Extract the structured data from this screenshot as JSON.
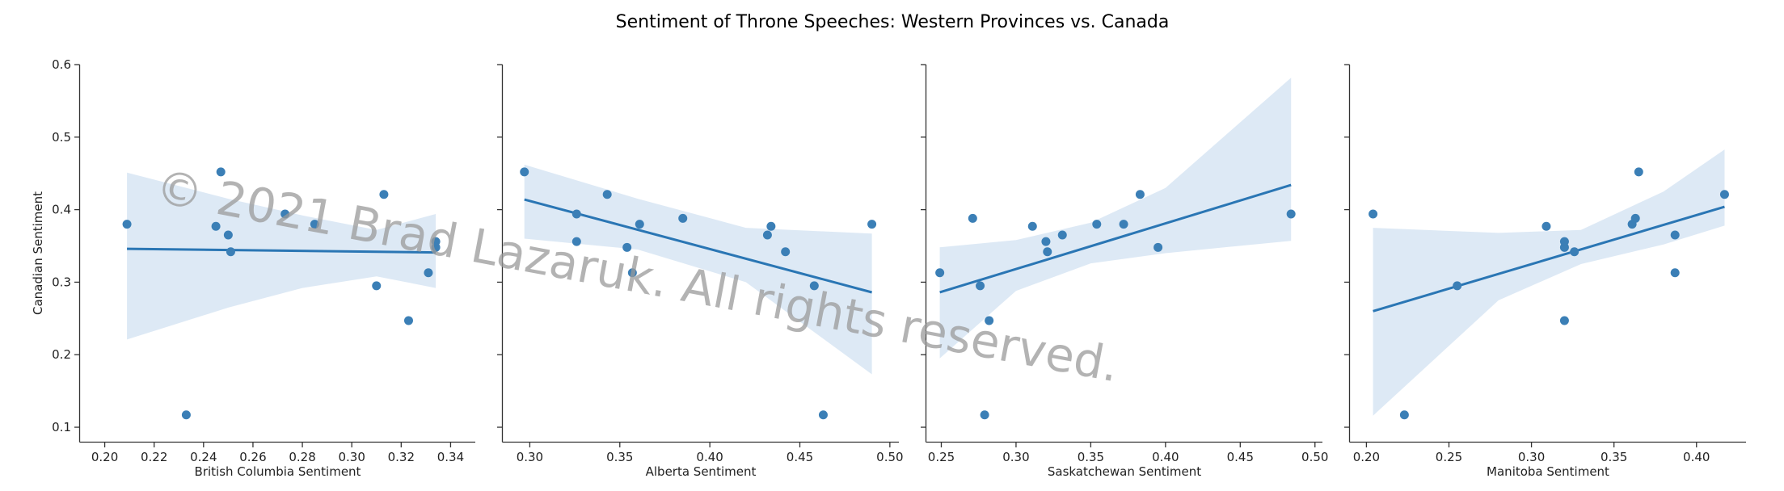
{
  "figure": {
    "title": "Sentiment of Throne Speeches: Western Provinces vs. Canada",
    "watermark": "© 2021 Brad Lazaruk. All rights reserved."
  },
  "colors": {
    "points": "#3b7fb6",
    "line": "#2a76b4",
    "band": "#c6dbef"
  },
  "chart_data": [
    {
      "type": "scatter",
      "xlabel": "British Columbia Sentiment",
      "ylabel": "Canadian Sentiment",
      "xlim": [
        0.19,
        0.35
      ],
      "ylim": [
        0.08,
        0.6
      ],
      "xticks": [
        "0.20",
        "0.22",
        "0.24",
        "0.26",
        "0.28",
        "0.30",
        "0.32",
        "0.34"
      ],
      "yticks": [
        "0.1",
        "0.2",
        "0.3",
        "0.4",
        "0.5",
        "0.6"
      ],
      "points": [
        [
          0.209,
          0.38
        ],
        [
          0.233,
          0.117
        ],
        [
          0.245,
          0.377
        ],
        [
          0.247,
          0.452
        ],
        [
          0.25,
          0.365
        ],
        [
          0.251,
          0.342
        ],
        [
          0.273,
          0.394
        ],
        [
          0.285,
          0.38
        ],
        [
          0.31,
          0.295
        ],
        [
          0.313,
          0.421
        ],
        [
          0.323,
          0.247
        ],
        [
          0.331,
          0.313
        ],
        [
          0.334,
          0.348
        ],
        [
          0.334,
          0.356
        ]
      ],
      "fit": {
        "x": [
          0.209,
          0.334
        ],
        "y": [
          0.346,
          0.341
        ]
      },
      "ci": {
        "x": [
          0.209,
          0.25,
          0.28,
          0.31,
          0.334
        ],
        "lower": [
          0.221,
          0.265,
          0.292,
          0.308,
          0.292
        ],
        "upper": [
          0.451,
          0.415,
          0.392,
          0.372,
          0.394
        ]
      }
    },
    {
      "type": "scatter",
      "xlabel": "Alberta Sentiment",
      "ylabel": "",
      "xlim": [
        0.285,
        0.505
      ],
      "ylim": [
        0.08,
        0.6
      ],
      "xticks": [
        "0.30",
        "0.35",
        "0.40",
        "0.45",
        "0.50"
      ],
      "yticks": [],
      "points": [
        [
          0.297,
          0.452
        ],
        [
          0.326,
          0.394
        ],
        [
          0.326,
          0.356
        ],
        [
          0.343,
          0.421
        ],
        [
          0.354,
          0.348
        ],
        [
          0.357,
          0.313
        ],
        [
          0.361,
          0.38
        ],
        [
          0.385,
          0.388
        ],
        [
          0.432,
          0.365
        ],
        [
          0.434,
          0.377
        ],
        [
          0.442,
          0.342
        ],
        [
          0.458,
          0.295
        ],
        [
          0.463,
          0.117
        ],
        [
          0.49,
          0.38
        ]
      ],
      "fit": {
        "x": [
          0.297,
          0.49
        ],
        "y": [
          0.414,
          0.286
        ]
      },
      "ci": {
        "x": [
          0.297,
          0.36,
          0.42,
          0.49
        ],
        "lower": [
          0.36,
          0.345,
          0.3,
          0.173
        ],
        "upper": [
          0.462,
          0.415,
          0.375,
          0.367
        ]
      }
    },
    {
      "type": "scatter",
      "xlabel": "Saskatchewan Sentiment",
      "ylabel": "",
      "xlim": [
        0.24,
        0.505
      ],
      "ylim": [
        0.08,
        0.6
      ],
      "xticks": [
        "0.25",
        "0.30",
        "0.35",
        "0.40",
        "0.45",
        "0.50"
      ],
      "yticks": [],
      "points": [
        [
          0.249,
          0.313
        ],
        [
          0.271,
          0.388
        ],
        [
          0.276,
          0.295
        ],
        [
          0.279,
          0.117
        ],
        [
          0.282,
          0.247
        ],
        [
          0.311,
          0.377
        ],
        [
          0.32,
          0.356
        ],
        [
          0.321,
          0.342
        ],
        [
          0.331,
          0.365
        ],
        [
          0.354,
          0.38
        ],
        [
          0.372,
          0.38
        ],
        [
          0.383,
          0.421
        ],
        [
          0.395,
          0.348
        ],
        [
          0.484,
          0.394
        ]
      ],
      "fit": {
        "x": [
          0.249,
          0.484
        ],
        "y": [
          0.286,
          0.434
        ]
      },
      "ci": {
        "x": [
          0.249,
          0.3,
          0.35,
          0.4,
          0.484
        ],
        "lower": [
          0.195,
          0.288,
          0.326,
          0.34,
          0.357
        ],
        "upper": [
          0.348,
          0.358,
          0.382,
          0.43,
          0.582
        ]
      }
    },
    {
      "type": "scatter",
      "xlabel": "Manitoba Sentiment",
      "ylabel": "",
      "xlim": [
        0.19,
        0.43
      ],
      "ylim": [
        0.08,
        0.6
      ],
      "xticks": [
        "0.20",
        "0.25",
        "0.30",
        "0.35",
        "0.40"
      ],
      "yticks": [],
      "points": [
        [
          0.204,
          0.394
        ],
        [
          0.223,
          0.117
        ],
        [
          0.255,
          0.295
        ],
        [
          0.309,
          0.377
        ],
        [
          0.32,
          0.247
        ],
        [
          0.32,
          0.348
        ],
        [
          0.32,
          0.356
        ],
        [
          0.326,
          0.342
        ],
        [
          0.361,
          0.38
        ],
        [
          0.363,
          0.388
        ],
        [
          0.365,
          0.452
        ],
        [
          0.387,
          0.313
        ],
        [
          0.387,
          0.365
        ],
        [
          0.417,
          0.421
        ]
      ],
      "fit": {
        "x": [
          0.204,
          0.417
        ],
        "y": [
          0.26,
          0.404
        ]
      },
      "ci": {
        "x": [
          0.204,
          0.28,
          0.33,
          0.38,
          0.417
        ],
        "lower": [
          0.116,
          0.275,
          0.325,
          0.352,
          0.378
        ],
        "upper": [
          0.375,
          0.368,
          0.372,
          0.425,
          0.483
        ]
      }
    }
  ]
}
